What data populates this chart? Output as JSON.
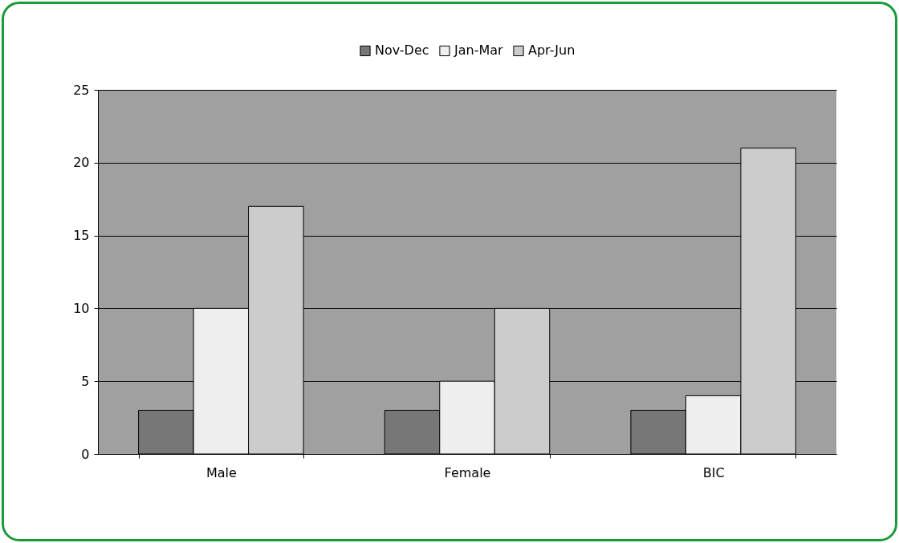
{
  "chart_data": {
    "type": "bar",
    "categories": [
      "Male",
      "Female",
      "BIC"
    ],
    "series": [
      {
        "name": "Nov-Dec",
        "color": "#777777",
        "values": [
          3,
          3,
          3
        ]
      },
      {
        "name": "Jan-Mar",
        "color": "#eeeeee",
        "values": [
          10,
          5,
          4
        ]
      },
      {
        "name": "Apr-Jun",
        "color": "#cccccc",
        "values": [
          17,
          10,
          21
        ]
      }
    ],
    "ylim": [
      0,
      25
    ],
    "yticks": [
      0,
      5,
      10,
      15,
      20,
      25
    ],
    "grid": "y",
    "legend": "top"
  }
}
